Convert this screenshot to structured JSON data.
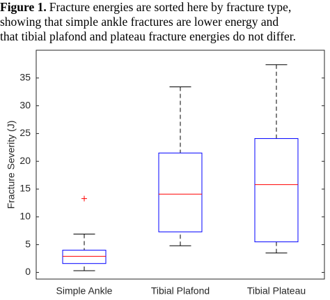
{
  "chart_data": {
    "type": "box",
    "caption_label": "Figure 1.",
    "caption_lines": [
      "Fracture energies are sorted here by fracture type,",
      "showing that simple ankle fractures are lower energy and",
      "that tibial plafond and plateau fracture energies do not differ."
    ],
    "y_label": "Fracture Severity (J)",
    "categories": [
      "Simple Ankle",
      "Tibial Plafond",
      "Tibial Plateau"
    ],
    "boxes": [
      {
        "low": 0.3,
        "q1": 1.6,
        "median": 2.9,
        "q3": 4.0,
        "high": 6.9,
        "outliers": [
          13.3
        ]
      },
      {
        "low": 4.8,
        "q1": 7.3,
        "median": 14.1,
        "q3": 21.5,
        "high": 33.4,
        "outliers": []
      },
      {
        "low": 3.5,
        "q1": 5.5,
        "median": 15.8,
        "q3": 24.1,
        "high": 37.4,
        "outliers": []
      }
    ],
    "box_color": "#0000ff",
    "median_color": "#ff0000",
    "whisker_color": "#000000",
    "outlier_color": "#ff0000",
    "ylim": [
      -1.2,
      40
    ],
    "yticks": [
      0,
      5,
      10,
      15,
      20,
      25,
      30,
      35
    ]
  }
}
